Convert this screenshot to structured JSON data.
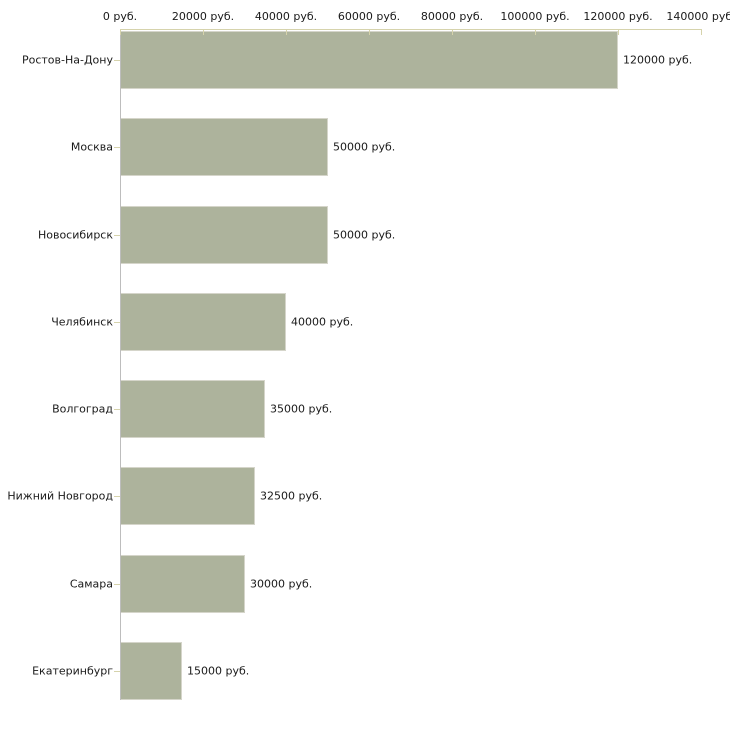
{
  "chart_data": {
    "type": "bar",
    "orientation": "horizontal",
    "categories": [
      "Ростов-На-Дону",
      "Москва",
      "Новосибирск",
      "Челябинск",
      "Волгоград",
      "Нижний Новгород",
      "Самара",
      "Екатеринбург"
    ],
    "values": [
      120000,
      50000,
      50000,
      40000,
      35000,
      32500,
      30000,
      15000
    ],
    "value_labels": [
      "120000 руб.",
      "50000 руб.",
      "50000 руб.",
      "40000 руб.",
      "35000 руб.",
      "32500 руб.",
      "30000 руб.",
      "15000 руб."
    ],
    "x_axis": {
      "position": "top",
      "min": 0,
      "max": 140000,
      "tick_values": [
        0,
        20000,
        40000,
        60000,
        80000,
        100000,
        120000,
        140000
      ],
      "tick_labels": [
        "0 руб.",
        "20000 руб.",
        "40000 руб.",
        "60000 руб.",
        "80000 руб.",
        "100000 руб.",
        "120000 руб.",
        "140000 руб."
      ]
    },
    "unit": "руб.",
    "grid": false,
    "legend": false,
    "colors": {
      "bar_fill": "#adb39c",
      "bar_border": "#d5d5ca",
      "axis_line_horizontal": "#d6d3ac",
      "axis_line_vertical": "#bdbdbd",
      "text": "#1a1a1a",
      "background": "#ffffff"
    }
  }
}
